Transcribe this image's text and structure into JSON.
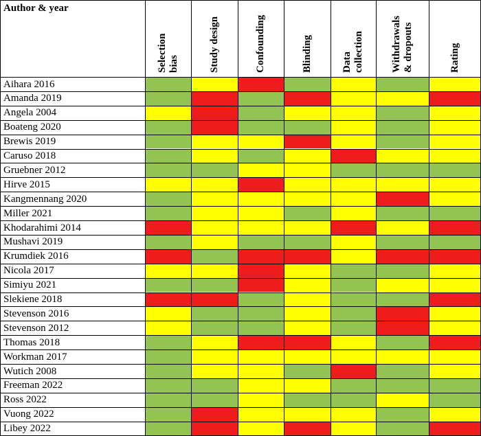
{
  "table": {
    "header_first": "Author & year",
    "columns": [
      "Selection\nbias",
      "Study design",
      "Confounding",
      "Blinding",
      "Data\ncollection",
      "Withdrawals\n& dropouts",
      "Rating"
    ],
    "legend_colors": {
      "G": "#92c353",
      "Y": "#ffff00",
      "R": "#ee1c1c"
    },
    "rows": [
      {
        "author": "Aihara 2016",
        "ratings": [
          "G",
          "Y",
          "R",
          "G",
          "Y",
          "G",
          "Y"
        ]
      },
      {
        "author": "Amanda 2019",
        "ratings": [
          "G",
          "R",
          "G",
          "R",
          "Y",
          "Y",
          "R"
        ]
      },
      {
        "author": "Angela 2004",
        "ratings": [
          "Y",
          "R",
          "G",
          "Y",
          "Y",
          "G",
          "Y"
        ]
      },
      {
        "author": "Boateng 2020",
        "ratings": [
          "G",
          "R",
          "G",
          "G",
          "Y",
          "G",
          "Y"
        ]
      },
      {
        "author": "Brewis 2019",
        "ratings": [
          "G",
          "Y",
          "Y",
          "R",
          "Y",
          "G",
          "Y"
        ]
      },
      {
        "author": "Caruso 2018",
        "ratings": [
          "G",
          "Y",
          "G",
          "Y",
          "R",
          "Y",
          "Y"
        ]
      },
      {
        "author": "Gruebner 2012",
        "ratings": [
          "G",
          "G",
          "Y",
          "Y",
          "G",
          "G",
          "G"
        ]
      },
      {
        "author": "Hirve 2015",
        "ratings": [
          "Y",
          "Y",
          "R",
          "Y",
          "Y",
          "Y",
          "Y"
        ]
      },
      {
        "author": "Kangmennang 2020",
        "ratings": [
          "G",
          "Y",
          "Y",
          "Y",
          "Y",
          "R",
          "Y"
        ]
      },
      {
        "author": "Miller 2021",
        "ratings": [
          "G",
          "Y",
          "Y",
          "G",
          "Y",
          "G",
          "G"
        ]
      },
      {
        "author": "Khodarahimi 2014",
        "ratings": [
          "R",
          "Y",
          "Y",
          "Y",
          "R",
          "Y",
          "R"
        ]
      },
      {
        "author": "Mushavi 2019",
        "ratings": [
          "G",
          "Y",
          "G",
          "G",
          "Y",
          "G",
          "G"
        ]
      },
      {
        "author": "Krumdiek 2016",
        "ratings": [
          "R",
          "G",
          "R",
          "R",
          "Y",
          "R",
          "R"
        ]
      },
      {
        "author": "Nicola 2017",
        "ratings": [
          "Y",
          "Y",
          "R",
          "Y",
          "G",
          "G",
          "Y"
        ]
      },
      {
        "author": "Simiyu 2021",
        "ratings": [
          "G",
          "G",
          "R",
          "Y",
          "G",
          "Y",
          "Y"
        ]
      },
      {
        "author": "Slekiene 2018",
        "ratings": [
          "R",
          "R",
          "G",
          "Y",
          "G",
          "G",
          "R"
        ]
      },
      {
        "author": "Stevenson 2016",
        "ratings": [
          "Y",
          "G",
          "G",
          "Y",
          "G",
          "R",
          "Y"
        ]
      },
      {
        "author": "Stevenson 2012",
        "ratings": [
          "Y",
          "G",
          "G",
          "Y",
          "G",
          "R",
          "Y"
        ]
      },
      {
        "author": "Thomas 2018",
        "ratings": [
          "G",
          "Y",
          "R",
          "R",
          "Y",
          "G",
          "R"
        ]
      },
      {
        "author": "Workman 2017",
        "ratings": [
          "G",
          "Y",
          "Y",
          "Y",
          "Y",
          "Y",
          "Y"
        ]
      },
      {
        "author": "Wutich 2008",
        "ratings": [
          "G",
          "Y",
          "Y",
          "G",
          "R",
          "G",
          "Y"
        ]
      },
      {
        "author": "Freeman 2022",
        "ratings": [
          "G",
          "G",
          "Y",
          "Y",
          "G",
          "G",
          "G"
        ]
      },
      {
        "author": "Ross 2022",
        "ratings": [
          "G",
          "G",
          "Y",
          "G",
          "G",
          "Y",
          "G"
        ]
      },
      {
        "author": "Vuong 2022",
        "ratings": [
          "G",
          "R",
          "Y",
          "Y",
          "Y",
          "G",
          "Y"
        ]
      },
      {
        "author": "Libey 2022",
        "ratings": [
          "G",
          "R",
          "Y",
          "R",
          "Y",
          "G",
          "R"
        ]
      }
    ]
  }
}
